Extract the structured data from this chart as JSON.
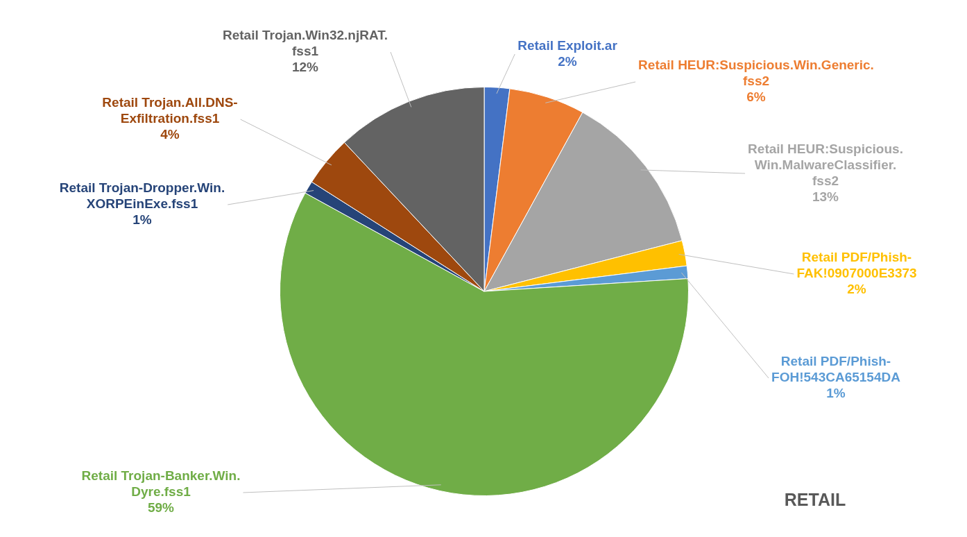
{
  "chart_data": {
    "type": "pie",
    "title": "RETAIL",
    "categories": [
      "Retail Exploit.ar",
      "Retail HEUR:Suspicious.Win.Generic.fss2",
      "Retail HEUR:Suspicious.Win.MalwareClassifier.fss2",
      "Retail PDF/Phish-FAK!0907000E3373",
      "Retail PDF/Phish-FOH!543CA65154DA",
      "Retail Trojan-Banker.Win.Dyre.fss1",
      "Retail Trojan-Dropper.Win.XORPEinExe.fss1",
      "Retail Trojan.All.DNS-Exfiltration.fss1",
      "Retail Trojan.Win32.njRAT.fss1"
    ],
    "values": [
      2,
      6,
      13,
      2,
      1,
      59,
      1,
      4,
      12
    ],
    "value_labels": [
      "2%",
      "6%",
      "13%",
      "2%",
      "1%",
      "59%",
      "1%",
      "4%",
      "12%"
    ],
    "colors": [
      "#4472c4",
      "#ed7d31",
      "#a5a5a5",
      "#ffc000",
      "#5b9bd5",
      "#70ad47",
      "#264478",
      "#9e480e",
      "#636363"
    ],
    "legend": false
  }
}
